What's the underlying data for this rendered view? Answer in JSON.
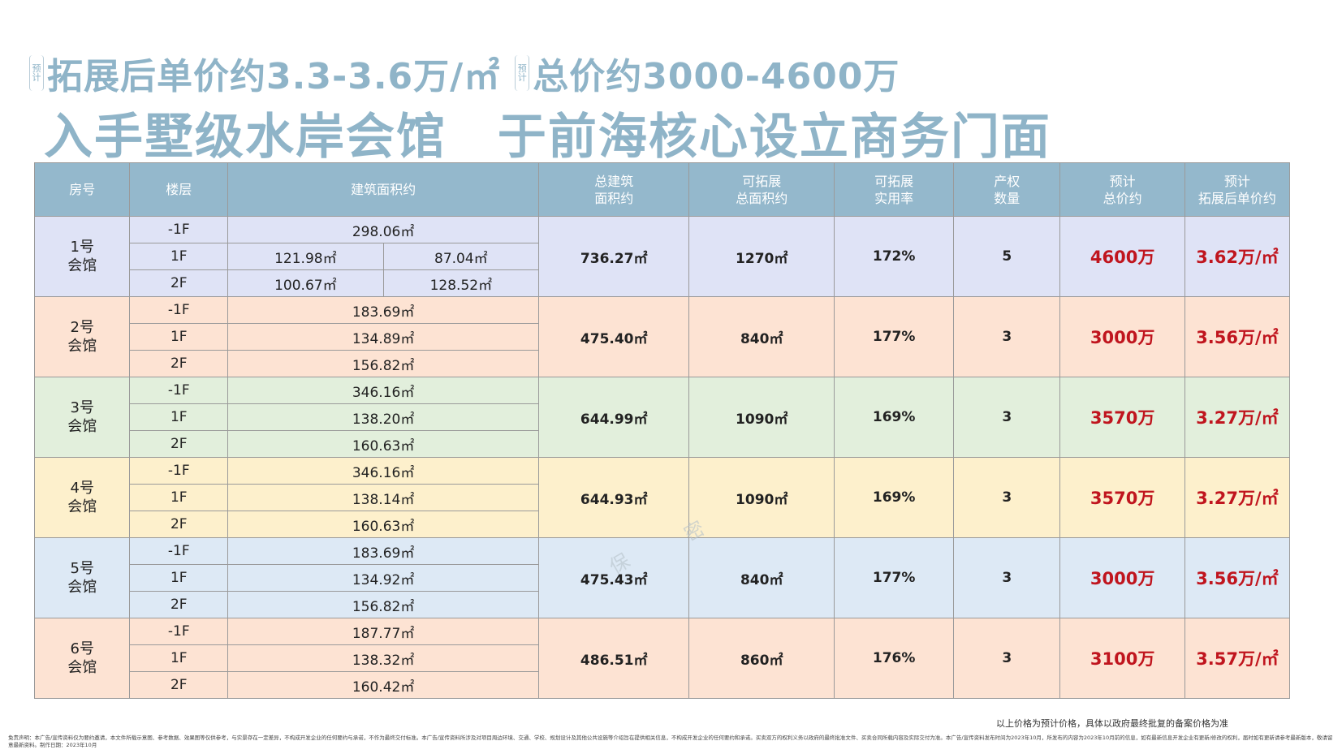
{
  "header": {
    "tag1": "预计",
    "line1a": "拓展后单价约3.3-3.6万/㎡",
    "tag2": "预计",
    "line1b": "总价约3000-4600万",
    "line2a": "入手墅级水岸会馆",
    "line2b": "于前海核心设立商务门面"
  },
  "table": {
    "headers": {
      "room": "房号",
      "floor": "楼层",
      "area": "建筑面积约",
      "total_area_1": "总建筑",
      "total_area_2": "面积约",
      "expand_1": "可拓展",
      "expand_2": "总面积约",
      "rate_1": "可拓展",
      "rate_2": "实用率",
      "prop_1": "产权",
      "prop_2": "数量",
      "price_1": "预计",
      "price_2": "总价约",
      "unit_1": "预计",
      "unit_2": "拓展后单价约"
    },
    "rows": [
      {
        "room_1": "1号",
        "room_2": "会馆",
        "floors": [
          {
            "floor": "-1F",
            "area": "298.06㎡"
          },
          {
            "floor": "1F",
            "area_a": "121.98㎡",
            "area_b": "87.04㎡"
          },
          {
            "floor": "2F",
            "area_a": "100.67㎡",
            "area_b": "128.52㎡"
          }
        ],
        "total_area": "736.27㎡",
        "expand_area": "1270㎡",
        "rate": "172%",
        "count": "5",
        "total_price": "4600万",
        "unit_price": "3.62万/㎡"
      },
      {
        "room_1": "2号",
        "room_2": "会馆",
        "floors": [
          {
            "floor": "-1F",
            "area": "183.69㎡"
          },
          {
            "floor": "1F",
            "area": "134.89㎡"
          },
          {
            "floor": "2F",
            "area": "156.82㎡"
          }
        ],
        "total_area": "475.40㎡",
        "expand_area": "840㎡",
        "rate": "177%",
        "count": "3",
        "total_price": "3000万",
        "unit_price": "3.56万/㎡"
      },
      {
        "room_1": "3号",
        "room_2": "会馆",
        "floors": [
          {
            "floor": "-1F",
            "area": "346.16㎡"
          },
          {
            "floor": "1F",
            "area": "138.20㎡"
          },
          {
            "floor": "2F",
            "area": "160.63㎡"
          }
        ],
        "total_area": "644.99㎡",
        "expand_area": "1090㎡",
        "rate": "169%",
        "count": "3",
        "total_price": "3570万",
        "unit_price": "3.27万/㎡"
      },
      {
        "room_1": "4号",
        "room_2": "会馆",
        "floors": [
          {
            "floor": "-1F",
            "area": "346.16㎡"
          },
          {
            "floor": "1F",
            "area": "138.14㎡"
          },
          {
            "floor": "2F",
            "area": "160.63㎡"
          }
        ],
        "total_area": "644.93㎡",
        "expand_area": "1090㎡",
        "rate": "169%",
        "count": "3",
        "total_price": "3570万",
        "unit_price": "3.27万/㎡"
      },
      {
        "room_1": "5号",
        "room_2": "会馆",
        "floors": [
          {
            "floor": "-1F",
            "area": "183.69㎡"
          },
          {
            "floor": "1F",
            "area": "134.92㎡"
          },
          {
            "floor": "2F",
            "area": "156.82㎡"
          }
        ],
        "total_area": "475.43㎡",
        "expand_area": "840㎡",
        "rate": "177%",
        "count": "3",
        "total_price": "3000万",
        "unit_price": "3.56万/㎡"
      },
      {
        "room_1": "6号",
        "room_2": "会馆",
        "floors": [
          {
            "floor": "-1F",
            "area": "187.77㎡"
          },
          {
            "floor": "1F",
            "area": "138.32㎡"
          },
          {
            "floor": "2F",
            "area": "160.42㎡"
          }
        ],
        "total_area": "486.51㎡",
        "expand_area": "860㎡",
        "rate": "176%",
        "count": "3",
        "total_price": "3100万",
        "unit_price": "3.57万/㎡"
      }
    ]
  },
  "watermark": {
    "char1": "密",
    "char2": "保"
  },
  "note": "以上价格为预计价格，具体以政府最终批复的备案价格为准",
  "disclaimer": "免责声明：本广告/宣传资料仅为要约邀请，本文件所载示意图、参考数据、效果图等仅供参考，与实景存在一定差异，不构成开发企业的任何要约与承诺，不作为最终交付标准。本广告/宣传资料所涉及对项目周边环境、交通、学校、规划设计及其他公共设施等介绍旨在提供相关信息，不构成开发企业的任何要约和承诺。买卖双方的权利义务以政府的最终批准文件、买卖合同所载内容及实际交付为准。本广告/宣传资料发布时间为2023年10月，所发布的内容为2023年10月前的信息，如有最新信息开发企业有更新/修改的权利，届时如有更新请参考最新版本，敬请留意最新资料。制作日期：2023年10月"
}
